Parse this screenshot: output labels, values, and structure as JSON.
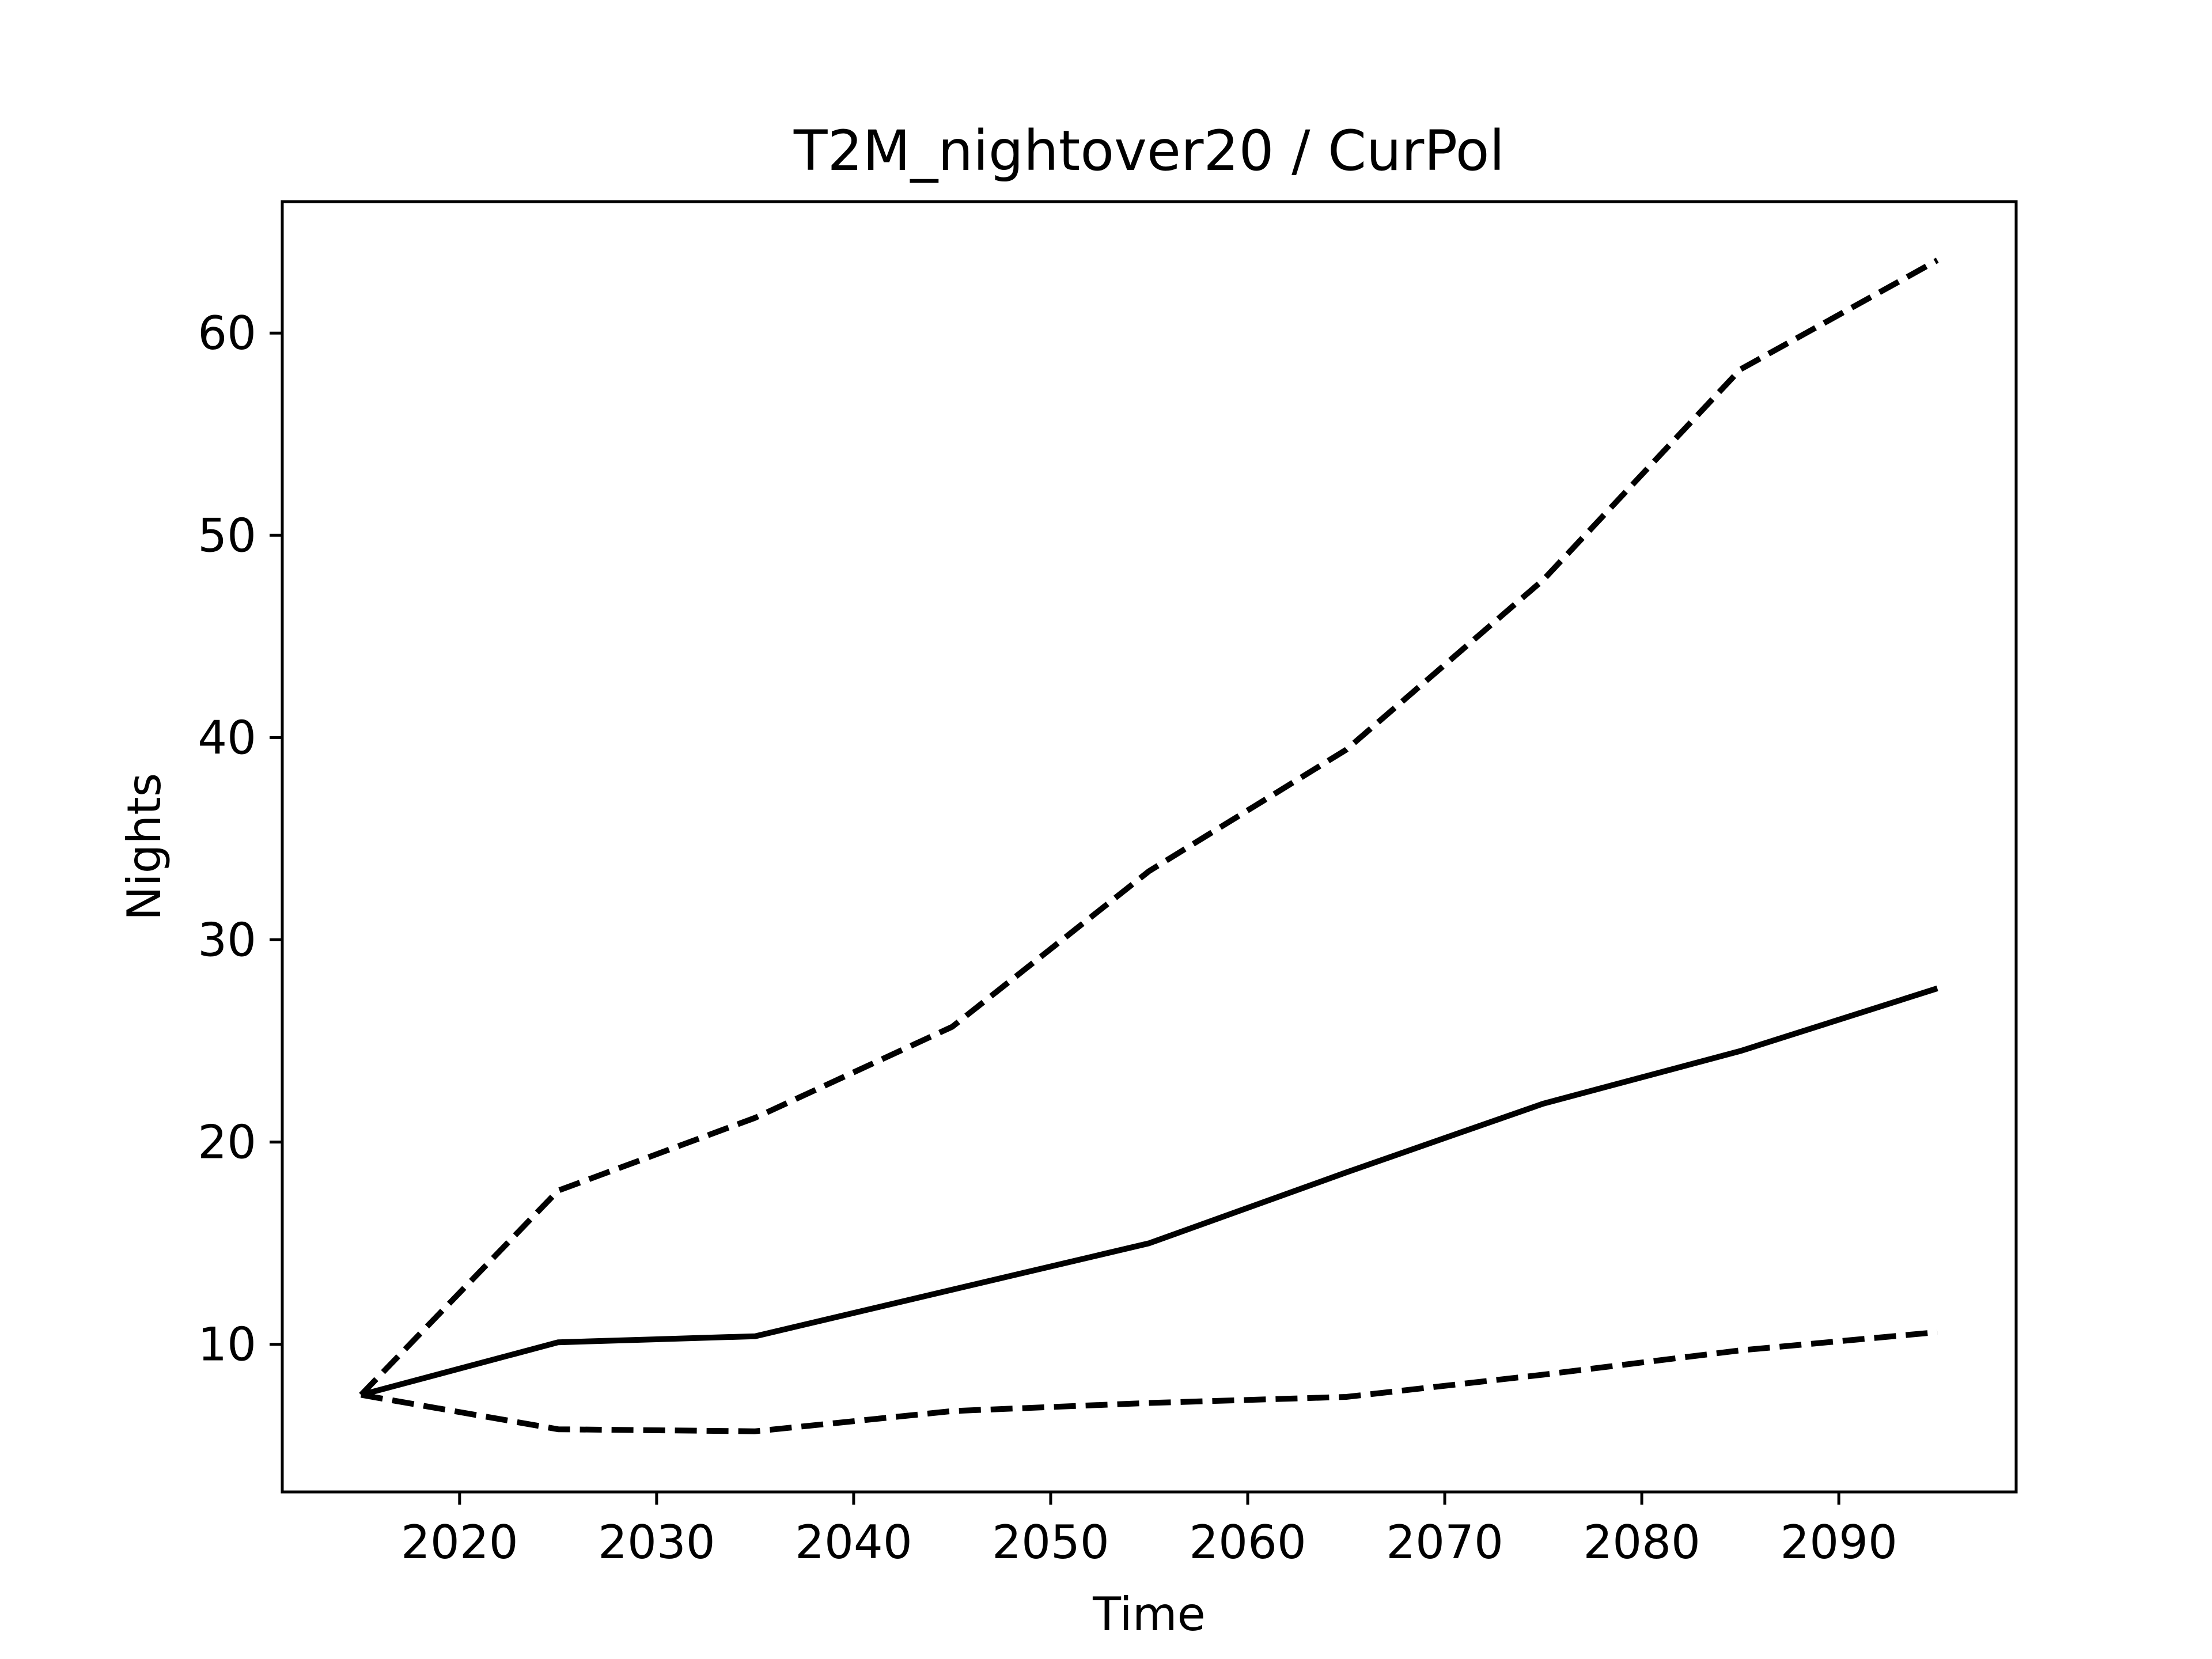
{
  "chart_data": {
    "type": "line",
    "title": "T2M_nightover20 / CurPol",
    "xlabel": "Time",
    "ylabel": "Nights",
    "xlim": [
      2011,
      2099
    ],
    "ylim": [
      2.7,
      66.5
    ],
    "xticks": [
      2020,
      2030,
      2040,
      2050,
      2060,
      2070,
      2080,
      2090
    ],
    "yticks": [
      10,
      20,
      30,
      40,
      50,
      60
    ],
    "grid": false,
    "x": [
      2015,
      2025,
      2035,
      2045,
      2055,
      2065,
      2075,
      2085,
      2095
    ],
    "series": [
      {
        "style": "dashed",
        "color": "#000000",
        "values": [
          7.5,
          17.6,
          21.2,
          25.7,
          33.4,
          39.4,
          47.8,
          58.2,
          63.6
        ]
      },
      {
        "style": "solid",
        "color": "#000000",
        "values": [
          7.5,
          10.1,
          10.4,
          12.7,
          15.0,
          18.5,
          21.9,
          24.5,
          27.6
        ]
      },
      {
        "style": "dashed",
        "color": "#000000",
        "values": [
          7.5,
          5.8,
          5.7,
          6.7,
          7.1,
          7.4,
          8.5,
          9.7,
          10.6
        ]
      }
    ]
  }
}
